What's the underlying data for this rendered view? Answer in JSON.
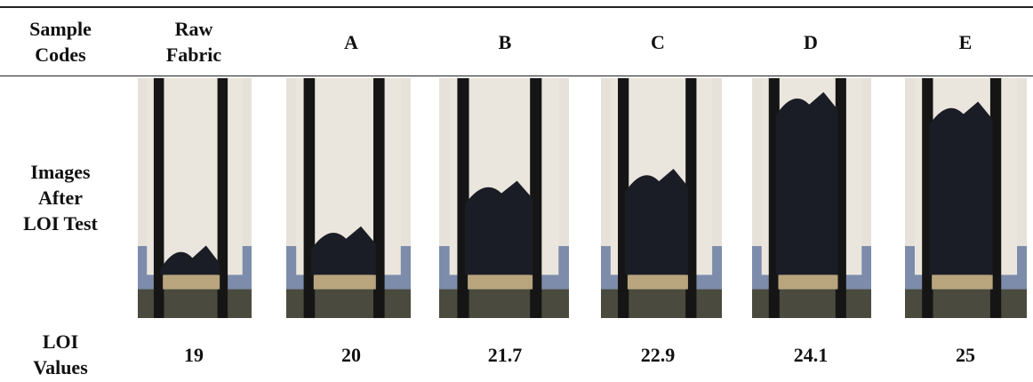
{
  "table": {
    "header": [
      "Sample Codes",
      "Raw Fabric",
      "A",
      "B",
      "C",
      "D",
      "E"
    ],
    "images_row_label": "Images After LOI Test",
    "values_row": {
      "label": "LOI Values",
      "values": [
        19,
        20,
        21.7,
        22.9,
        24.1,
        25
      ]
    }
  }
}
